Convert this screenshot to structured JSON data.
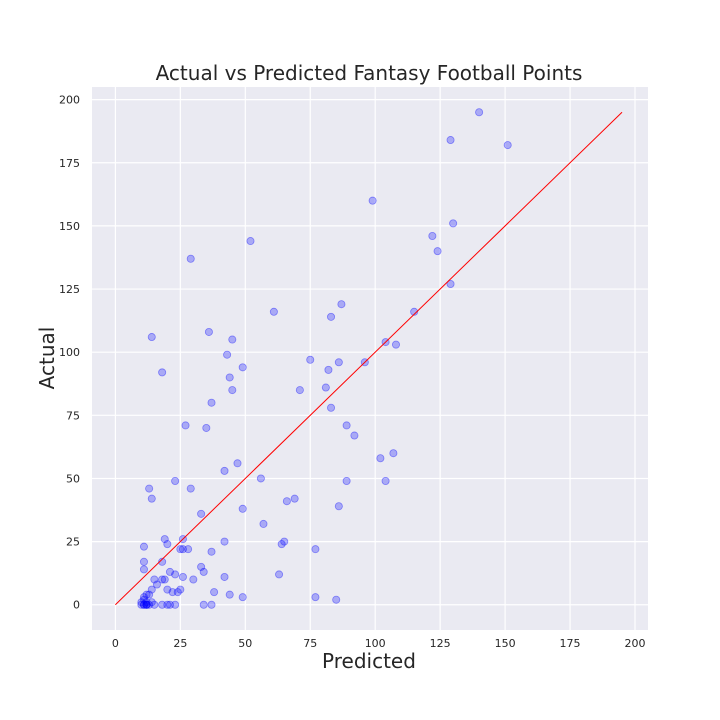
{
  "chart_data": {
    "type": "scatter",
    "title": "Actual vs Predicted Fantasy Football Points",
    "xlabel": "Predicted",
    "ylabel": "Actual",
    "xlim": [
      -9,
      205
    ],
    "ylim": [
      -10,
      205
    ],
    "xticks": [
      0,
      25,
      50,
      75,
      100,
      125,
      150,
      175,
      200
    ],
    "yticks": [
      0,
      25,
      50,
      75,
      100,
      125,
      150,
      175,
      200
    ],
    "grid": true,
    "colors": {
      "background": "#eaeaf2",
      "grid": "#ffffff",
      "points": "#0000ff",
      "reference_line": "#ff0000"
    },
    "reference_line": {
      "x": [
        0,
        195
      ],
      "y": [
        0,
        195
      ]
    },
    "series": [
      {
        "x": [
          140,
          129,
          151,
          99,
          130,
          122,
          124,
          129,
          52,
          29,
          115,
          61,
          14,
          36,
          45,
          83,
          87,
          43,
          104,
          108,
          75,
          96,
          86,
          18,
          49,
          44,
          82,
          71,
          81,
          45,
          37,
          83,
          27,
          35,
          89,
          92,
          107,
          102,
          104,
          89,
          42,
          47,
          56,
          23,
          29,
          13,
          14,
          69,
          66,
          49,
          86,
          33,
          57,
          65,
          77,
          64,
          11,
          19,
          20,
          26,
          42,
          11,
          37,
          26,
          25,
          33,
          28,
          42,
          34,
          18,
          11,
          30,
          23,
          21,
          63,
          26,
          15,
          19,
          18,
          16,
          38,
          25,
          24,
          22,
          20,
          14,
          13,
          12,
          11,
          10,
          11,
          12,
          11,
          12,
          10,
          11,
          13,
          12,
          44,
          49,
          77,
          85,
          37,
          34,
          23,
          21,
          20,
          18,
          12,
          14,
          15
        ],
        "y": [
          195,
          184,
          182,
          160,
          151,
          146,
          140,
          127,
          144,
          137,
          116,
          116,
          106,
          108,
          105,
          114,
          119,
          99,
          104,
          103,
          97,
          96,
          96,
          92,
          94,
          90,
          93,
          85,
          86,
          85,
          80,
          78,
          71,
          70,
          71,
          67,
          60,
          58,
          49,
          49,
          53,
          56,
          50,
          49,
          46,
          46,
          42,
          42,
          41,
          38,
          39,
          36,
          32,
          25,
          22,
          24,
          23,
          26,
          24,
          26,
          25,
          17,
          21,
          22,
          22,
          15,
          22,
          11,
          13,
          17,
          14,
          10,
          12,
          13,
          12,
          11,
          10,
          10,
          10,
          8,
          5,
          6,
          5,
          5,
          6,
          6,
          4,
          4,
          3,
          1,
          2,
          1,
          0,
          0,
          0,
          0,
          0,
          0,
          4,
          3,
          3,
          2,
          0,
          0,
          0,
          0,
          0,
          0,
          0,
          1,
          0
        ]
      }
    ]
  }
}
